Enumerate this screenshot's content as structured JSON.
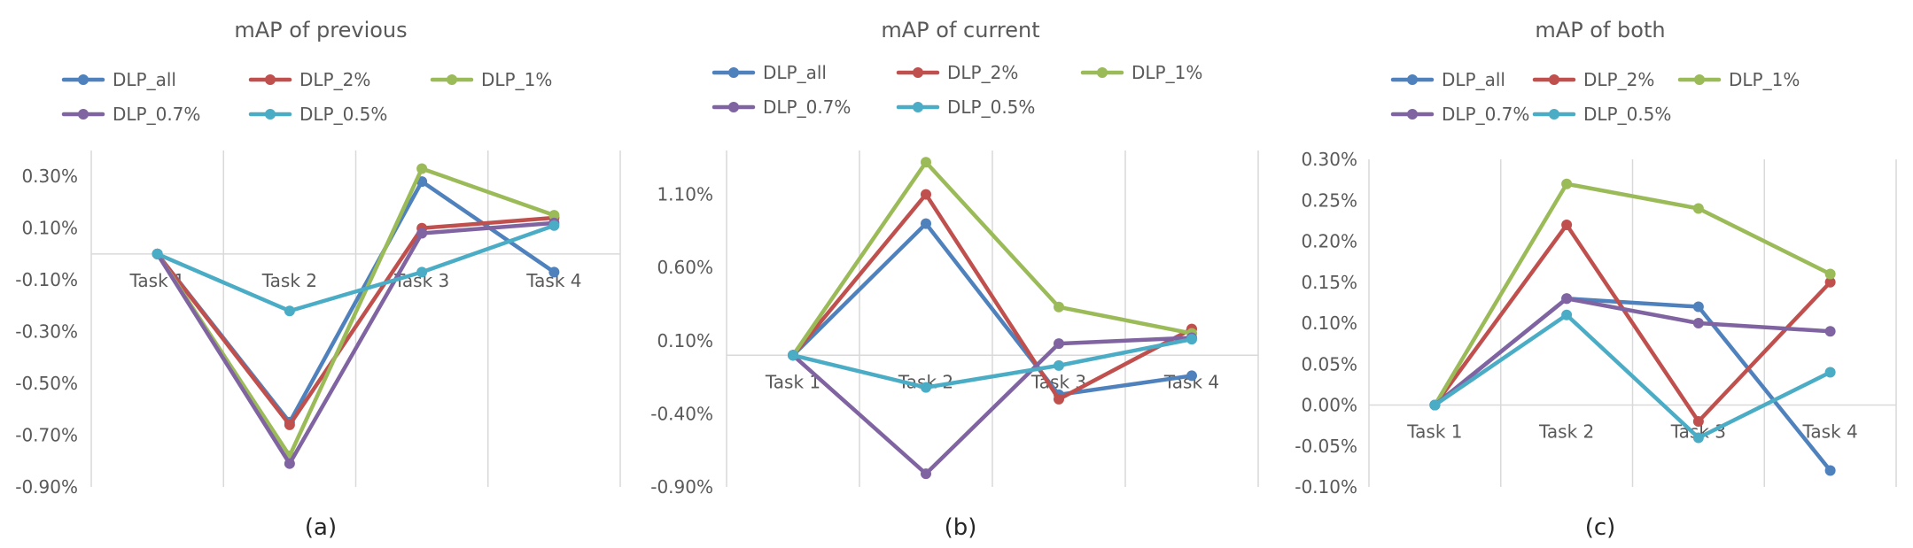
{
  "chart_data": [
    {
      "type": "line",
      "title": "mAP of previous",
      "caption": "(a)",
      "categories": [
        "Task 1",
        "Task 2",
        "Task 3",
        "Task 4"
      ],
      "ylim": [
        -0.9,
        0.4
      ],
      "yticks": [
        -0.9,
        -0.7,
        -0.5,
        -0.3,
        -0.1,
        0.1,
        0.3
      ],
      "ytick_labels": [
        "-0.90%",
        "-0.70%",
        "-0.50%",
        "-0.30%",
        "-0.10%",
        "0.10%",
        "0.30%"
      ],
      "ylabel": "",
      "xlabel": "",
      "series": [
        {
          "name": "DLP_all",
          "color": "#4F81BD",
          "values": [
            0.0,
            -0.65,
            0.28,
            -0.07
          ]
        },
        {
          "name": "DLP_2%",
          "color": "#C0504D",
          "values": [
            0.0,
            -0.66,
            0.1,
            0.14
          ]
        },
        {
          "name": "DLP_1%",
          "color": "#9BBB59",
          "values": [
            0.0,
            -0.78,
            0.33,
            0.15
          ]
        },
        {
          "name": "DLP_0.7%",
          "color": "#8064A2",
          "values": [
            0.0,
            -0.81,
            0.08,
            0.12
          ]
        },
        {
          "name": "DLP_0.5%",
          "color": "#4BACC6",
          "values": [
            0.0,
            -0.22,
            -0.07,
            0.11
          ]
        }
      ]
    },
    {
      "type": "line",
      "title": "mAP of current",
      "caption": "(b)",
      "categories": [
        "Task 1",
        "Task 2",
        "Task 3",
        "Task 4"
      ],
      "ylim": [
        -0.9,
        1.4
      ],
      "yticks": [
        -0.9,
        -0.4,
        0.1,
        0.6,
        1.1
      ],
      "ytick_labels": [
        "-0.90%",
        "-0.40%",
        "0.10%",
        "0.60%",
        "1.10%"
      ],
      "ylabel": "",
      "xlabel": "",
      "series": [
        {
          "name": "DLP_all",
          "color": "#4F81BD",
          "values": [
            0.0,
            0.9,
            -0.27,
            -0.14
          ]
        },
        {
          "name": "DLP_2%",
          "color": "#C0504D",
          "values": [
            0.0,
            1.1,
            -0.3,
            0.18
          ]
        },
        {
          "name": "DLP_1%",
          "color": "#9BBB59",
          "values": [
            0.0,
            1.32,
            0.33,
            0.15
          ]
        },
        {
          "name": "DLP_0.7%",
          "color": "#8064A2",
          "values": [
            0.0,
            -0.81,
            0.08,
            0.12
          ]
        },
        {
          "name": "DLP_0.5%",
          "color": "#4BACC6",
          "values": [
            0.0,
            -0.22,
            -0.07,
            0.11
          ]
        }
      ]
    },
    {
      "type": "line",
      "title": "mAP of both",
      "caption": "(c)",
      "categories": [
        "Task 1",
        "Task 2",
        "Task 3",
        "Task 4"
      ],
      "ylim": [
        -0.1,
        0.3
      ],
      "yticks": [
        -0.1,
        -0.05,
        0.0,
        0.05,
        0.1,
        0.15,
        0.2,
        0.25,
        0.3
      ],
      "ytick_labels": [
        "-0.10%",
        "-0.05%",
        "0.00%",
        "0.05%",
        "0.10%",
        "0.15%",
        "0.20%",
        "0.25%",
        "0.30%"
      ],
      "ylabel": "",
      "xlabel": "",
      "series": [
        {
          "name": "DLP_all",
          "color": "#4F81BD",
          "values": [
            0.0,
            0.13,
            0.12,
            -0.08
          ]
        },
        {
          "name": "DLP_2%",
          "color": "#C0504D",
          "values": [
            0.0,
            0.22,
            -0.02,
            0.15
          ]
        },
        {
          "name": "DLP_1%",
          "color": "#9BBB59",
          "values": [
            0.0,
            0.27,
            0.24,
            0.16
          ]
        },
        {
          "name": "DLP_0.7%",
          "color": "#8064A2",
          "values": [
            0.0,
            0.13,
            0.1,
            0.09
          ]
        },
        {
          "name": "DLP_0.5%",
          "color": "#4BACC6",
          "values": [
            0.0,
            0.11,
            -0.04,
            0.04
          ]
        }
      ]
    }
  ]
}
